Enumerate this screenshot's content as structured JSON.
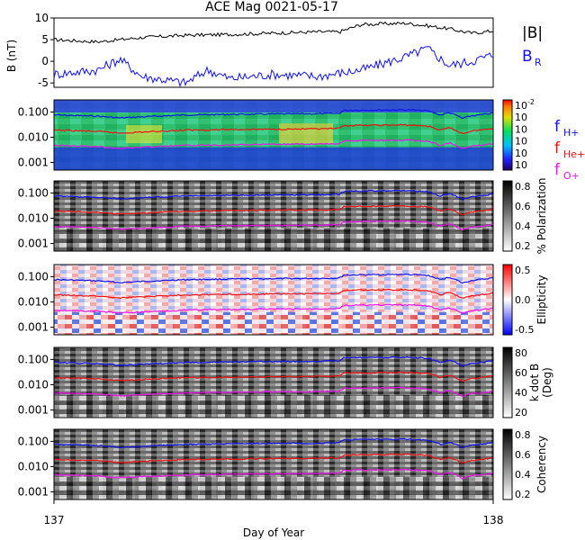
{
  "figure": {
    "title": "ACE Mag 0021-05-17",
    "xlabel": "Day of Year",
    "x_ticks": [
      "137",
      "138"
    ],
    "xlim": [
      137,
      138
    ]
  },
  "colors": {
    "H": "#1111ee",
    "He": "#ee1111",
    "O": "#ee11ee",
    "B": "#000000",
    "BR": "#1111ee"
  },
  "chart_data": [
    {
      "type": "line",
      "panel": "mag",
      "ylabel": "B (nT)",
      "ylim": [
        -6,
        10
      ],
      "y_ticks": [
        "10",
        "5",
        "0",
        "-5"
      ],
      "legend_position": "right",
      "series": [
        {
          "name": "|B|",
          "key": "B",
          "x": [
            137.0,
            137.1,
            137.2,
            137.3,
            137.4,
            137.5,
            137.6,
            137.65,
            137.7,
            137.8,
            137.85,
            137.9,
            137.95,
            138.0
          ],
          "y": [
            5,
            4.5,
            5.5,
            6,
            6.2,
            6.5,
            6.8,
            6.8,
            8.5,
            8.8,
            8.2,
            7.5,
            6.5,
            7
          ]
        },
        {
          "name": "B",
          "subscript": "R",
          "key": "BR",
          "x": [
            137.0,
            137.1,
            137.15,
            137.2,
            137.3,
            137.35,
            137.4,
            137.5,
            137.6,
            137.7,
            137.8,
            137.85,
            137.9,
            137.95,
            138.0
          ],
          "y": [
            -3,
            -2,
            0.5,
            -3.5,
            -5,
            -2,
            -4,
            -3,
            -3.5,
            -2,
            1,
            3,
            -1,
            0,
            1.5
          ]
        }
      ]
    },
    {
      "type": "heatmap",
      "panel": "power",
      "ylim": [
        0.0005,
        0.3
      ],
      "y_ticks": [
        "0.100",
        "0.010",
        "0.001"
      ],
      "colorbar_ticks": [
        "10",
        "10",
        "10",
        "10",
        "10",
        "10"
      ],
      "colorbar_exponents": [
        "-2",
        "",
        "",
        "",
        "",
        ""
      ],
      "legend_entries": [
        {
          "text": "f",
          "sub": "H+",
          "key": "H"
        },
        {
          "text": "f",
          "sub": "He+",
          "key": "He"
        },
        {
          "text": "f",
          "sub": "O+",
          "key": "O"
        }
      ]
    },
    {
      "type": "heatmap",
      "panel": "polarization",
      "ylim": [
        0.0005,
        0.3
      ],
      "y_ticks": [
        "0.100",
        "0.010",
        "0.001"
      ],
      "colorbar_label": "% Polarization",
      "colorbar_ticks": [
        "0.8",
        "0.6",
        "0.4",
        "0.2"
      ]
    },
    {
      "type": "heatmap",
      "panel": "ellipticity",
      "ylim": [
        0.0005,
        0.3
      ],
      "y_ticks": [
        "0.100",
        "0.010",
        "0.001"
      ],
      "colorbar_label": "Ellipticity",
      "colorbar_ticks": [
        "0.5",
        "0.0",
        "-0.5"
      ]
    },
    {
      "type": "heatmap",
      "panel": "kdotb",
      "ylim": [
        0.0005,
        0.3
      ],
      "y_ticks": [
        "0.100",
        "0.010",
        "0.001"
      ],
      "colorbar_label": "k dot B",
      "colorbar_label2": "(Deg)",
      "colorbar_ticks": [
        "80",
        "60",
        "40",
        "20"
      ]
    },
    {
      "type": "heatmap",
      "panel": "coherency",
      "ylim": [
        0.0005,
        0.3
      ],
      "y_ticks": [
        "0.100",
        "0.010",
        "0.001"
      ],
      "colorbar_label": "Coherency",
      "colorbar_ticks": [
        "0.8",
        "0.6",
        "0.4",
        "0.2"
      ]
    }
  ],
  "gyro_lines": {
    "x": [
      137.0,
      137.05,
      137.1,
      137.15,
      137.2,
      137.3,
      137.4,
      137.5,
      137.6,
      137.65,
      137.66,
      137.7,
      137.8,
      137.85,
      137.88,
      137.9,
      137.93,
      137.95,
      137.98,
      138.0
    ],
    "fH": [
      0.076,
      0.072,
      0.068,
      0.058,
      0.064,
      0.076,
      0.08,
      0.083,
      0.085,
      0.088,
      0.115,
      0.118,
      0.122,
      0.112,
      0.075,
      0.095,
      0.055,
      0.07,
      0.08,
      0.09
    ]
  }
}
